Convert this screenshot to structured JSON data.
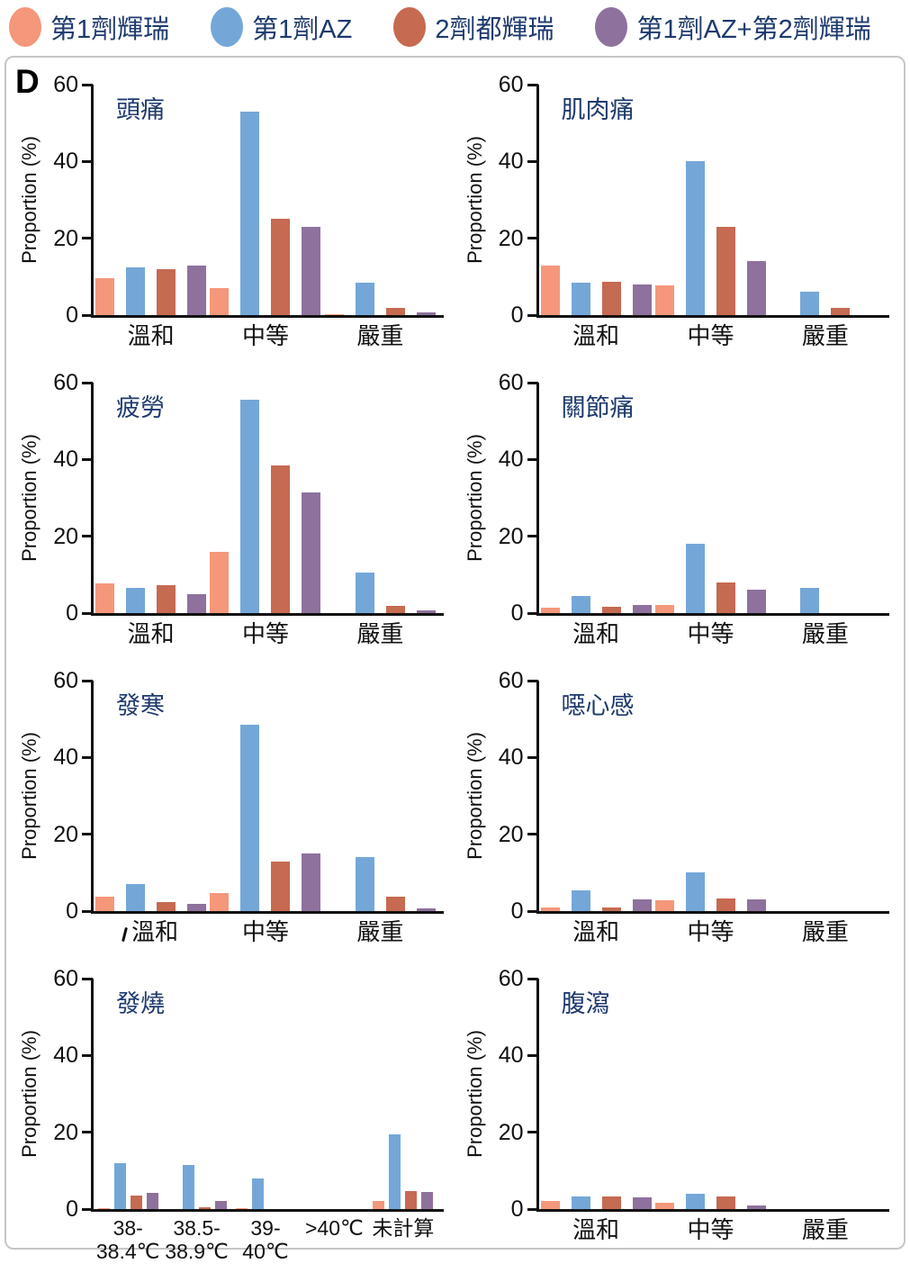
{
  "figure_label": "D",
  "colors": {
    "series": [
      "#F4977B",
      "#74A7D8",
      "#C66A52",
      "#8E719C"
    ],
    "title_text": "#1E3A6E",
    "axis": "#111111",
    "box_border": "#C6C6C6"
  },
  "legend": {
    "position": "top",
    "items": [
      {
        "label": "第1劑輝瑞",
        "color": "#F4977B"
      },
      {
        "label": "第1劑AZ",
        "color": "#74A7D8"
      },
      {
        "label": "2劑都輝瑞",
        "color": "#C66A52"
      },
      {
        "label": "第1劑AZ+第2劑輝瑞",
        "color": "#8E719C"
      }
    ]
  },
  "chart_data": [
    {
      "type": "bar",
      "title": "頭痛",
      "xlabel": "",
      "ylabel": "Proportion (%)",
      "ylim": [
        0,
        60
      ],
      "yticks": [
        0,
        20,
        40,
        60
      ],
      "grid": false,
      "categories": [
        "溫和",
        "中等",
        "嚴重"
      ],
      "series": [
        {
          "name": "第1劑輝瑞",
          "values": [
            9.5,
            7,
            0.3
          ]
        },
        {
          "name": "第1劑AZ",
          "values": [
            12.5,
            53,
            8.5
          ]
        },
        {
          "name": "2劑都輝瑞",
          "values": [
            12,
            25,
            1.8
          ]
        },
        {
          "name": "第1劑AZ+第2劑輝瑞",
          "values": [
            13,
            23,
            0.8
          ]
        }
      ]
    },
    {
      "type": "bar",
      "title": "肌肉痛",
      "xlabel": "",
      "ylabel": "Proportion (%)",
      "ylim": [
        0,
        60
      ],
      "yticks": [
        0,
        20,
        40,
        60
      ],
      "grid": false,
      "categories": [
        "溫和",
        "中等",
        "嚴重"
      ],
      "series": [
        {
          "name": "第1劑輝瑞",
          "values": [
            13,
            7.8,
            0
          ]
        },
        {
          "name": "第1劑AZ",
          "values": [
            8.5,
            40,
            6
          ]
        },
        {
          "name": "2劑都輝瑞",
          "values": [
            8.7,
            23,
            1.8
          ]
        },
        {
          "name": "第1劑AZ+第2劑輝瑞",
          "values": [
            8,
            14,
            0
          ]
        }
      ]
    },
    {
      "type": "bar",
      "title": "疲勞",
      "xlabel": "",
      "ylabel": "Proportion (%)",
      "ylim": [
        0,
        60
      ],
      "yticks": [
        0,
        20,
        40,
        60
      ],
      "grid": false,
      "categories": [
        "溫和",
        "中等",
        "嚴重"
      ],
      "series": [
        {
          "name": "第1劑輝瑞",
          "values": [
            7.8,
            16,
            0
          ]
        },
        {
          "name": "第1劑AZ",
          "values": [
            6.5,
            55.5,
            10.5
          ]
        },
        {
          "name": "2劑都輝瑞",
          "values": [
            7.3,
            38.5,
            1.8
          ]
        },
        {
          "name": "第1劑AZ+第2劑輝瑞",
          "values": [
            5,
            31.5,
            0.8
          ]
        }
      ]
    },
    {
      "type": "bar",
      "title": "關節痛",
      "xlabel": "",
      "ylabel": "Proportion (%)",
      "ylim": [
        0,
        60
      ],
      "yticks": [
        0,
        20,
        40,
        60
      ],
      "grid": false,
      "categories": [
        "溫和",
        "中等",
        "嚴重"
      ],
      "series": [
        {
          "name": "第1劑輝瑞",
          "values": [
            1.5,
            2.2,
            0
          ]
        },
        {
          "name": "第1劑AZ",
          "values": [
            4.5,
            18,
            6.5
          ]
        },
        {
          "name": "2劑都輝瑞",
          "values": [
            1.7,
            8,
            0
          ]
        },
        {
          "name": "第1劑AZ+第2劑輝瑞",
          "values": [
            2,
            6,
            0
          ]
        }
      ]
    },
    {
      "type": "bar",
      "title": "發寒",
      "xlabel": "",
      "ylabel": "Proportion (%)",
      "ylim": [
        0,
        60
      ],
      "yticks": [
        0,
        20,
        40,
        60
      ],
      "grid": false,
      "stray_mark": true,
      "categories": [
        "溫和",
        "中等",
        "嚴重"
      ],
      "series": [
        {
          "name": "第1劑輝瑞",
          "values": [
            3.7,
            4.8,
            0
          ]
        },
        {
          "name": "第1劑AZ",
          "values": [
            7,
            48.5,
            14
          ]
        },
        {
          "name": "2劑都輝瑞",
          "values": [
            2.3,
            13,
            3.7
          ]
        },
        {
          "name": "第1劑AZ+第2劑輝瑞",
          "values": [
            1.8,
            15,
            0.8
          ]
        }
      ]
    },
    {
      "type": "bar",
      "title": "噁心感",
      "xlabel": "",
      "ylabel": "Proportion (%)",
      "ylim": [
        0,
        60
      ],
      "yticks": [
        0,
        20,
        40,
        60
      ],
      "grid": false,
      "categories": [
        "溫和",
        "中等",
        "嚴重"
      ],
      "series": [
        {
          "name": "第1劑輝瑞",
          "values": [
            0.9,
            2.7,
            0
          ]
        },
        {
          "name": "第1劑AZ",
          "values": [
            5.3,
            10,
            0
          ]
        },
        {
          "name": "2劑都輝瑞",
          "values": [
            1,
            3.2,
            0
          ]
        },
        {
          "name": "第1劑AZ+第2劑輝瑞",
          "values": [
            3,
            3,
            0
          ]
        }
      ]
    },
    {
      "type": "bar",
      "title": "發燒",
      "xlabel": "",
      "ylabel": "Proportion (%)",
      "ylim": [
        0,
        60
      ],
      "yticks": [
        0,
        20,
        40,
        60
      ],
      "grid": false,
      "categories": [
        "38-\n38.4℃",
        "38.5-\n38.9℃",
        "39-\n40℃",
        ">40℃",
        "未計算"
      ],
      "series": [
        {
          "name": "第1劑輝瑞",
          "values": [
            0.3,
            0,
            0.2,
            0,
            2.2
          ]
        },
        {
          "name": "第1劑AZ",
          "values": [
            12,
            11.5,
            8,
            0,
            19.5
          ]
        },
        {
          "name": "2劑都輝瑞",
          "values": [
            3.5,
            0.5,
            0,
            0,
            4.8
          ]
        },
        {
          "name": "第1劑AZ+第2劑輝瑞",
          "values": [
            4.2,
            2,
            0,
            0,
            4.5
          ]
        }
      ]
    },
    {
      "type": "bar",
      "title": "腹瀉",
      "xlabel": "",
      "ylabel": "Proportion (%)",
      "ylim": [
        0,
        60
      ],
      "yticks": [
        0,
        20,
        40,
        60
      ],
      "grid": false,
      "categories": [
        "溫和",
        "中等",
        "嚴重"
      ],
      "series": [
        {
          "name": "第1劑輝瑞",
          "values": [
            2.2,
            1.7,
            0
          ]
        },
        {
          "name": "第1劑AZ",
          "values": [
            3.3,
            4,
            0
          ]
        },
        {
          "name": "2劑都輝瑞",
          "values": [
            3.2,
            3.2,
            0
          ]
        },
        {
          "name": "第1劑AZ+第2劑輝瑞",
          "values": [
            3,
            0.9,
            0
          ]
        }
      ]
    }
  ]
}
